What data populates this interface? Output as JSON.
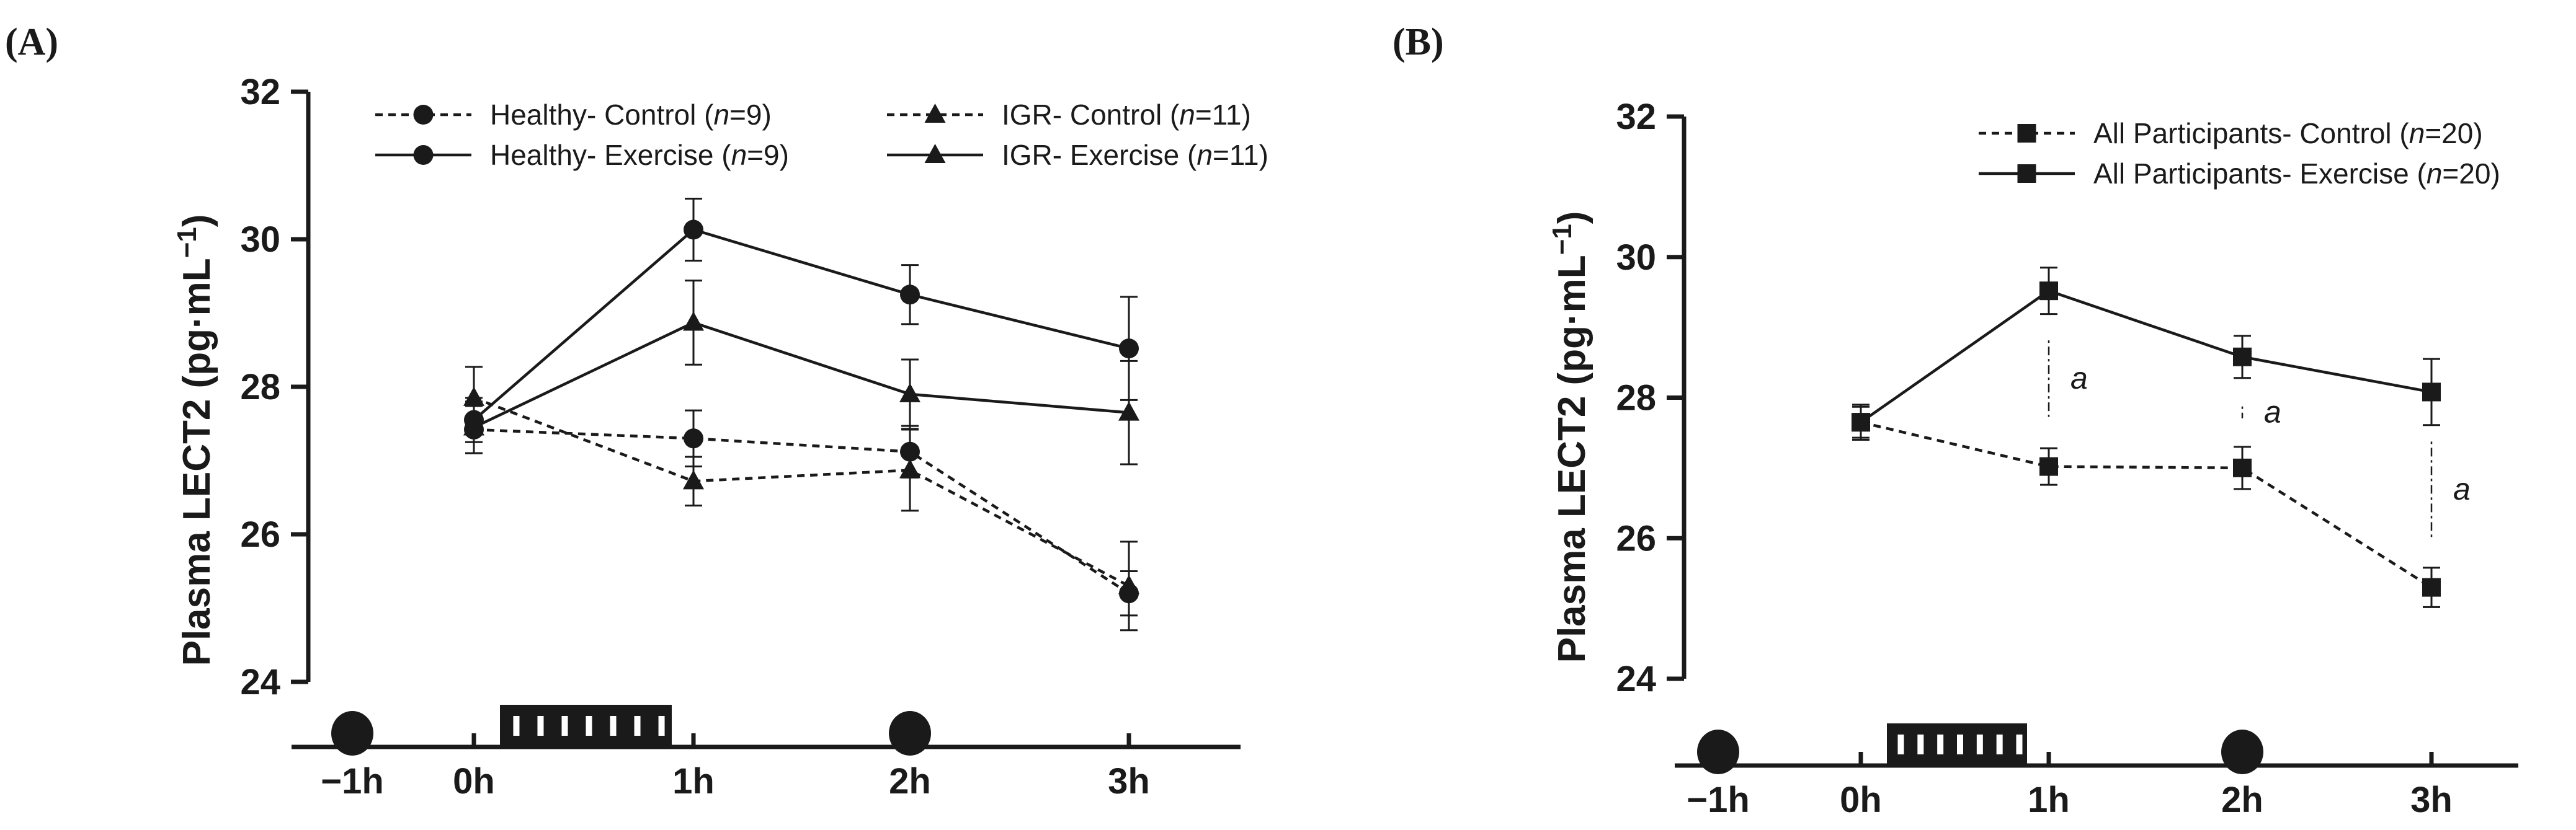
{
  "chart_data": [
    {
      "panel_label": "(A)",
      "type": "line",
      "ylabel": "Plasma LECT2 (pg·mL",
      "ylabel_sup": "−1",
      "ylabel_close": ")",
      "ylim": [
        24,
        32
      ],
      "yticks": [
        "24",
        "26",
        "28",
        "30",
        "32"
      ],
      "xticks": [
        "−1h",
        "0h",
        "1h",
        "2h",
        "3h"
      ],
      "series": [
        {
          "name": "Healthy- Control ",
          "n": "9",
          "marker": "circle",
          "style": "dashed",
          "x": [
            0,
            1,
            2,
            3
          ],
          "values": [
            27.42,
            27.3,
            27.12,
            25.2
          ],
          "err": [
            0.32,
            0.38,
            0.35,
            0.3
          ]
        },
        {
          "name": "Healthy- Exercise ",
          "n": "9",
          "marker": "circle",
          "style": "solid",
          "x": [
            0,
            1,
            2,
            3
          ],
          "values": [
            27.55,
            30.13,
            29.25,
            28.52
          ],
          "err": [
            0.3,
            0.42,
            0.4,
            0.7
          ]
        },
        {
          "name": "IGR- Control ",
          "n": "11",
          "marker": "triangle",
          "style": "dashed",
          "x": [
            0,
            1,
            2,
            3
          ],
          "values": [
            27.85,
            26.72,
            26.87,
            25.3
          ],
          "err": [
            0.42,
            0.33,
            0.55,
            0.6
          ]
        },
        {
          "name": "IGR- Exercise ",
          "n": "11",
          "marker": "triangle",
          "style": "solid",
          "x": [
            0,
            1,
            2,
            3
          ],
          "values": [
            27.45,
            28.87,
            27.9,
            27.65
          ],
          "err": [
            0.35,
            0.57,
            0.47,
            0.7
          ]
        }
      ],
      "legend_n_prefix": "n",
      "legend_n_suffix": ")",
      "annotations": []
    },
    {
      "panel_label": "(B)",
      "type": "line",
      "ylabel": "Plasma LECT2 (pg·mL",
      "ylabel_sup": "−1",
      "ylabel_close": ")",
      "ylim": [
        24,
        32
      ],
      "yticks": [
        "24",
        "26",
        "28",
        "30",
        "32"
      ],
      "xticks": [
        "−1h",
        "0h",
        "1h",
        "2h",
        "3h"
      ],
      "series": [
        {
          "name": "All Participants- Control ",
          "n": "20",
          "marker": "square",
          "style": "dashed",
          "x": [
            0,
            1,
            2,
            3
          ],
          "values": [
            27.65,
            27.02,
            27.0,
            25.3
          ],
          "err": [
            0.25,
            0.26,
            0.3,
            0.28
          ]
        },
        {
          "name": "All Participants- Exercise ",
          "n": "20",
          "marker": "square",
          "style": "solid",
          "x": [
            0,
            1,
            2,
            3
          ],
          "values": [
            27.65,
            29.52,
            28.58,
            28.08
          ],
          "err": [
            0.22,
            0.33,
            0.3,
            0.47
          ]
        }
      ],
      "legend_n_prefix": "n",
      "legend_n_suffix": ")",
      "annotations": [
        {
          "text": "a",
          "x": 1
        },
        {
          "text": "a",
          "x": 2
        },
        {
          "text": "a",
          "x": 3
        }
      ]
    }
  ],
  "colors": {
    "ink": "#1a1a1a",
    "background": "#ffffff"
  },
  "protocol_icons": [
    "meal-icon",
    "exercise-bout-icon",
    "meal-icon"
  ]
}
